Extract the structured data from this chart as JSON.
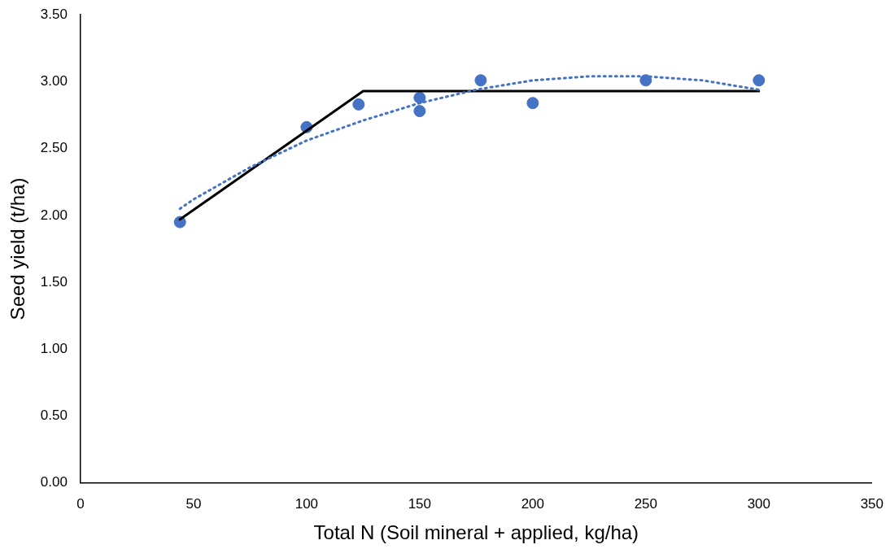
{
  "chart_data": {
    "type": "scatter",
    "xlabel": "Total N (Soil mineral + applied, kg/ha)",
    "ylabel": "Seed yield (t/ha)",
    "xlim": [
      0,
      350
    ],
    "xticks": [
      0,
      50,
      100,
      150,
      200,
      250,
      300,
      350
    ],
    "ylim": [
      0,
      3.5
    ],
    "yticks": [
      {
        "value": 0,
        "label": "0.00"
      },
      {
        "value": 0.5,
        "label": "0.50"
      },
      {
        "value": 1,
        "label": "1.00"
      },
      {
        "value": 1.5,
        "label": "1.50"
      },
      {
        "value": 2,
        "label": "2.00"
      },
      {
        "value": 2.5,
        "label": "2.50"
      },
      {
        "value": 3,
        "label": "3.00"
      },
      {
        "value": 3.5,
        "label": "3.50"
      }
    ],
    "grid": false,
    "legend": false,
    "series": [
      {
        "type": "line",
        "color": "#4472c4",
        "line_style": "dotted",
        "marker": "none",
        "x": [
          44,
          50,
          75,
          100,
          125,
          150,
          175,
          200,
          225,
          250,
          275,
          300
        ],
        "values": [
          2.05,
          2.12,
          2.36,
          2.56,
          2.71,
          2.84,
          2.94,
          3.01,
          3.04,
          3.04,
          3.01,
          2.94
        ]
      },
      {
        "type": "line",
        "color": "#000000",
        "line_style": "solid",
        "marker": "none",
        "x": [
          44,
          125,
          300
        ],
        "values": [
          1.97,
          2.93,
          2.93
        ]
      },
      {
        "type": "scatter",
        "color": "#4472c4",
        "marker": "circle",
        "x": [
          44,
          100,
          123,
          150,
          150,
          177,
          200,
          250,
          300
        ],
        "values": [
          1.95,
          2.66,
          2.83,
          2.88,
          2.78,
          3.01,
          2.84,
          3.01,
          3.01
        ]
      }
    ]
  }
}
